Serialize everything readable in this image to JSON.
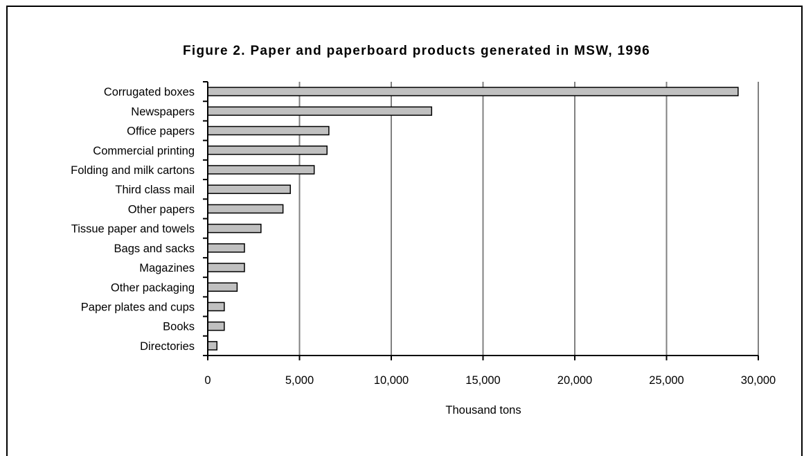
{
  "chart_data": {
    "type": "bar",
    "orientation": "horizontal",
    "title": "Figure 2. Paper and paperboard products generated in MSW, 1996",
    "xlabel": "Thousand tons",
    "ylabel": "",
    "xlim": [
      0,
      30000
    ],
    "xticks": [
      0,
      5000,
      10000,
      15000,
      20000,
      25000,
      30000
    ],
    "xtick_labels": [
      "0",
      "5,000",
      "10,000",
      "15,000",
      "20,000",
      "25,000",
      "30,000"
    ],
    "grid": "vertical",
    "legend": "none",
    "categories": [
      "Corrugated boxes",
      "Newspapers",
      "Office papers",
      "Commercial printing",
      "Folding and milk cartons",
      "Third class mail",
      "Other papers",
      "Tissue paper and towels",
      "Bags and sacks",
      "Magazines",
      "Other packaging",
      "Paper plates and cups",
      "Books",
      "Directories"
    ],
    "values": [
      28900,
      12200,
      6600,
      6500,
      5800,
      4500,
      4100,
      2900,
      2000,
      2000,
      1600,
      900,
      900,
      500
    ]
  },
  "colors": {
    "bar_fill": "#c0c0c0",
    "bar_stroke": "#000000",
    "grid": "#808080",
    "axis": "#000000",
    "text": "#000000"
  }
}
